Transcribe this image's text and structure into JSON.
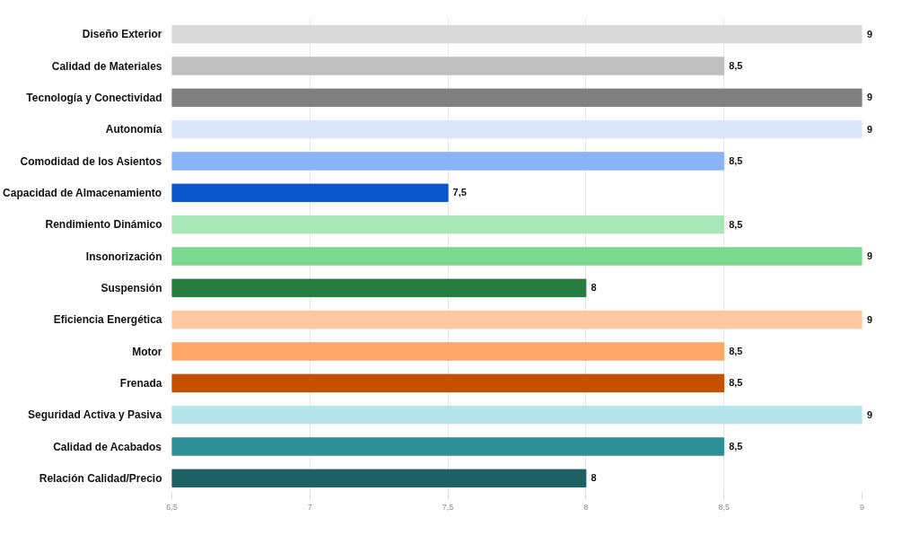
{
  "chart_data": {
    "type": "bar",
    "orientation": "horizontal",
    "categories": [
      "Diseño Exterior",
      "Calidad de Materiales",
      "Tecnología y Conectividad",
      "Autonomía",
      "Comodidad de los Asientos",
      "Capacidad de Almacenamiento",
      "Rendimiento Dinámico",
      "Insonorización",
      "Suspensión",
      "Eficiencia Energética",
      "Motor",
      "Frenada",
      "Seguridad Activa y Pasiva",
      "Calidad de Acabados",
      "Relación Calidad/Precio"
    ],
    "values": [
      9,
      8.5,
      9,
      9,
      8.5,
      7.5,
      8.5,
      9,
      8,
      9,
      8.5,
      8.5,
      9,
      8.5,
      8
    ],
    "value_labels": [
      "9",
      "8,5",
      "9",
      "9",
      "8,5",
      "7,5",
      "8,5",
      "9",
      "8",
      "9",
      "8,5",
      "8,5",
      "9",
      "8,5",
      "8"
    ],
    "colors": [
      "#d9d9d9",
      "#bfbfbf",
      "#808080",
      "#dae8fc",
      "#8ab4f8",
      "#0b57d0",
      "#a8e6b8",
      "#7bd88f",
      "#267d3f",
      "#ffc8a0",
      "#ffa868",
      "#c55000",
      "#b5e5ea",
      "#2e8f96",
      "#1f6064"
    ],
    "xlim": [
      6.5,
      9
    ],
    "xticks": [
      {
        "value": 6.5,
        "label": "6,5"
      },
      7,
      {
        "value": 7.5,
        "label": "7,5"
      },
      8,
      {
        "value": 8.5,
        "label": "8,5"
      },
      9
    ],
    "grid": "x"
  }
}
